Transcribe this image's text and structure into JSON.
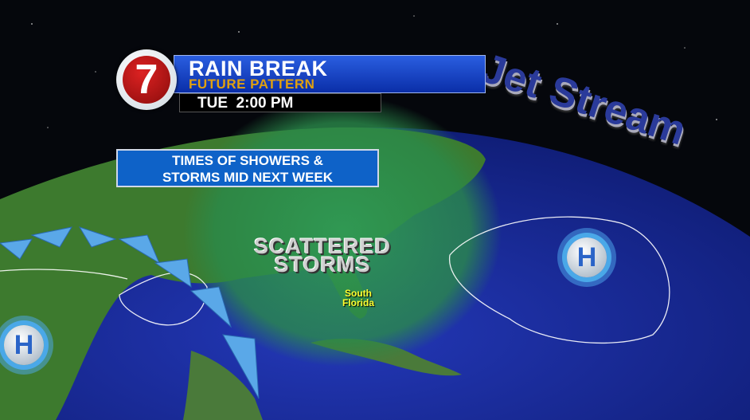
{
  "header": {
    "logo": "7",
    "title": "RAIN BREAK",
    "subtitle": "FUTURE PATTERN",
    "time": "TUE  2:00 PM"
  },
  "message": {
    "line1": "TIMES OF SHOWERS &",
    "line2": "STORMS MID NEXT WEEK"
  },
  "map": {
    "jet_stream_label": "Jet Stream",
    "storm_label_line1": "SCATTERED",
    "storm_label_line2": "STORMS",
    "region_label_line1": "South",
    "region_label_line2": "Florida",
    "high_pressure_symbol": "H",
    "colors": {
      "ocean": "#1a2f9a",
      "land": "#3a7a30",
      "rain_shade": "#2a8a4a",
      "title_bar": "#1a48c8",
      "subtitle": "#e0a010",
      "logo_red": "#c01818"
    }
  }
}
